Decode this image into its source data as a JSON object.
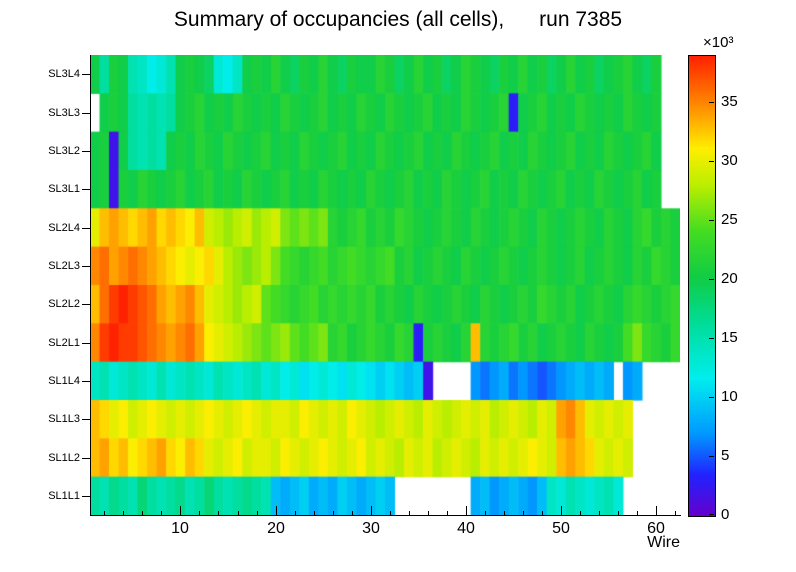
{
  "title": "Summary of occupancies (all cells),      run 7385",
  "axes": {
    "x_label": "Wire",
    "x_ticks": [
      10,
      20,
      30,
      40,
      50,
      60
    ],
    "y_labels": [
      "SL3L4",
      "SL3L3",
      "SL3L2",
      "SL3L1",
      "SL2L4",
      "SL2L3",
      "SL2L2",
      "SL2L1",
      "SL1L4",
      "SL1L3",
      "SL1L2",
      "SL1L1"
    ],
    "colorbar_ticks": [
      0,
      5,
      10,
      15,
      20,
      25,
      30,
      35
    ],
    "colorbar_exponent": "×10³"
  },
  "palette": [
    "#6600cc",
    "#2222ff",
    "#0099ff",
    "#00eeee",
    "#00dd99",
    "#11cc44",
    "#44dd22",
    "#bbee00",
    "#ffee00",
    "#ff9900",
    "#ff2200"
  ],
  "palette_stops": [
    0,
    0.09,
    0.18,
    0.3,
    0.42,
    0.52,
    0.62,
    0.72,
    0.8,
    0.88,
    1.0
  ],
  "chart_data": {
    "type": "heatmap",
    "title": "Summary of occupancies (all cells), run 7385",
    "xlabel": "Wire",
    "x_bins": 62,
    "x_range": [
      1,
      62
    ],
    "z_unit": "counts ×10³",
    "z_range": [
      0,
      39
    ],
    "legend_position": "colorbar-right",
    "grid": false,
    "note": "values in units of 10^3; null = empty (white) bin",
    "rows_top_to_bottom": [
      {
        "name": "SL3L4",
        "values": [
          20,
          16,
          21,
          20,
          15,
          14,
          12,
          13,
          15,
          20,
          21,
          20,
          19,
          13,
          12,
          14,
          20,
          21,
          20,
          22,
          20,
          19,
          21,
          20,
          22,
          20,
          19,
          21,
          20,
          20,
          22,
          21,
          19,
          20,
          22,
          20,
          21,
          19,
          20,
          22,
          21,
          20,
          19,
          21,
          20,
          22,
          20,
          21,
          19,
          20,
          22,
          20,
          21,
          19,
          20,
          21,
          22,
          20,
          19,
          21,
          null,
          null
        ]
      },
      {
        "name": "SL3L3",
        "values": [
          null,
          20,
          21,
          20,
          16,
          15,
          16,
          15,
          16,
          20,
          21,
          22,
          20,
          21,
          20,
          22,
          21,
          20,
          21,
          20,
          22,
          21,
          20,
          21,
          22,
          20,
          21,
          20,
          22,
          21,
          20,
          22,
          21,
          20,
          21,
          22,
          20,
          21,
          20,
          22,
          21,
          20,
          21,
          22,
          3,
          20,
          21,
          22,
          20,
          21,
          20,
          22,
          21,
          20,
          21,
          20,
          22,
          21,
          20,
          21,
          null,
          null
        ]
      },
      {
        "name": "SL3L2",
        "values": [
          20,
          21,
          2,
          20,
          16,
          15,
          16,
          15,
          20,
          21,
          20,
          22,
          21,
          20,
          22,
          21,
          20,
          21,
          22,
          20,
          21,
          20,
          22,
          21,
          20,
          21,
          22,
          20,
          21,
          20,
          22,
          21,
          20,
          21,
          22,
          20,
          21,
          20,
          22,
          21,
          20,
          21,
          22,
          20,
          21,
          20,
          22,
          21,
          20,
          21,
          22,
          20,
          21,
          20,
          22,
          21,
          20,
          21,
          22,
          20,
          null,
          null
        ]
      },
      {
        "name": "SL3L1",
        "values": [
          20,
          21,
          2,
          21,
          20,
          22,
          21,
          20,
          21,
          22,
          20,
          21,
          22,
          20,
          21,
          20,
          22,
          21,
          20,
          21,
          22,
          20,
          21,
          20,
          22,
          21,
          20,
          21,
          20,
          22,
          21,
          20,
          21,
          22,
          20,
          21,
          20,
          22,
          21,
          20,
          21,
          22,
          20,
          21,
          20,
          22,
          21,
          20,
          21,
          22,
          20,
          21,
          20,
          22,
          21,
          20,
          21,
          22,
          20,
          21,
          null,
          null
        ]
      },
      {
        "name": "SL2L4",
        "values": [
          30,
          33,
          34,
          33,
          32,
          33,
          34,
          32,
          33,
          32,
          31,
          33,
          29,
          28,
          27,
          28,
          29,
          27,
          28,
          29,
          26,
          25,
          26,
          25,
          26,
          22,
          21,
          22,
          23,
          21,
          22,
          21,
          23,
          22,
          21,
          20,
          21,
          22,
          21,
          20,
          22,
          21,
          20,
          21,
          22,
          21,
          20,
          22,
          21,
          20,
          21,
          22,
          21,
          20,
          22,
          21,
          20,
          22,
          23,
          21,
          22,
          21
        ]
      },
      {
        "name": "SL2L3",
        "values": [
          35,
          36,
          34,
          35,
          36,
          35,
          34,
          33,
          32,
          31,
          30,
          31,
          32,
          30,
          28,
          27,
          26,
          27,
          28,
          26,
          24,
          23,
          22,
          23,
          24,
          22,
          23,
          24,
          23,
          22,
          23,
          24,
          21,
          22,
          20,
          21,
          22,
          21,
          20,
          22,
          21,
          20,
          21,
          22,
          21,
          20,
          21,
          22,
          21,
          20,
          21,
          22,
          20,
          21,
          22,
          21,
          20,
          22,
          21,
          23,
          22,
          21
        ]
      },
      {
        "name": "SL2L2",
        "values": [
          33,
          36,
          38,
          39,
          38,
          37,
          36,
          34,
          33,
          34,
          35,
          33,
          30,
          29,
          28,
          27,
          28,
          29,
          25,
          24,
          23,
          22,
          23,
          24,
          22,
          23,
          22,
          23,
          22,
          23,
          21,
          22,
          21,
          20,
          22,
          21,
          20,
          21,
          22,
          21,
          20,
          22,
          21,
          20,
          21,
          22,
          21,
          23,
          22,
          21,
          22,
          20,
          21,
          22,
          21,
          20,
          22,
          23,
          22,
          21,
          22,
          23
        ]
      },
      {
        "name": "SL2L1",
        "values": [
          35,
          38,
          39,
          38,
          38,
          37,
          36,
          35,
          34,
          35,
          36,
          34,
          31,
          30,
          29,
          28,
          27,
          26,
          25,
          26,
          27,
          25,
          24,
          25,
          26,
          22,
          23,
          21,
          22,
          23,
          22,
          21,
          23,
          22,
          3,
          21,
          22,
          21,
          20,
          22,
          33,
          22,
          21,
          22,
          23,
          21,
          22,
          20,
          21,
          22,
          21,
          20,
          22,
          21,
          20,
          21,
          24,
          26,
          23,
          22,
          21,
          23
        ]
      },
      {
        "name": "SL1L4",
        "values": [
          14,
          15,
          13,
          14,
          15,
          14,
          13,
          15,
          13,
          14,
          15,
          14,
          13,
          15,
          14,
          13,
          14,
          15,
          13,
          14,
          12,
          13,
          11,
          12,
          13,
          12,
          11,
          13,
          12,
          11,
          10,
          11,
          10,
          9,
          10,
          2,
          null,
          null,
          null,
          null,
          7,
          6,
          7,
          8,
          6,
          7,
          6,
          5,
          6,
          7,
          8,
          9,
          8,
          9,
          8,
          null,
          7,
          8,
          null,
          null,
          null,
          null
        ]
      },
      {
        "name": "SL1L3",
        "values": [
          33,
          32,
          30,
          31,
          29,
          30,
          31,
          30,
          29,
          30,
          29,
          30,
          31,
          30,
          29,
          30,
          31,
          30,
          29,
          30,
          30,
          29,
          31,
          30,
          29,
          30,
          29,
          31,
          30,
          29,
          28,
          29,
          30,
          29,
          28,
          30,
          29,
          28,
          29,
          30,
          29,
          30,
          28,
          29,
          30,
          29,
          28,
          30,
          29,
          34,
          35,
          33,
          30,
          29,
          30,
          29,
          30,
          null,
          null,
          null,
          null,
          null
        ]
      },
      {
        "name": "SL1L2",
        "values": [
          33,
          34,
          32,
          33,
          31,
          32,
          33,
          34,
          32,
          31,
          33,
          32,
          30,
          29,
          30,
          31,
          29,
          30,
          30,
          29,
          31,
          30,
          29,
          30,
          31,
          30,
          29,
          30,
          31,
          29,
          30,
          29,
          28,
          30,
          29,
          30,
          28,
          29,
          30,
          29,
          28,
          30,
          29,
          30,
          29,
          30,
          31,
          30,
          29,
          33,
          34,
          33,
          32,
          30,
          29,
          30,
          29,
          null,
          null,
          null,
          null,
          null
        ]
      },
      {
        "name": "SL1L1",
        "values": [
          16,
          15,
          17,
          16,
          15,
          18,
          16,
          15,
          16,
          17,
          15,
          16,
          18,
          16,
          15,
          16,
          17,
          16,
          15,
          9,
          8,
          9,
          10,
          8,
          9,
          8,
          10,
          9,
          8,
          9,
          10,
          9,
          null,
          null,
          null,
          null,
          null,
          null,
          null,
          null,
          8,
          9,
          7,
          8,
          9,
          8,
          7,
          9,
          14,
          13,
          15,
          14,
          13,
          14,
          15,
          13,
          null,
          null,
          null,
          null,
          null,
          null
        ]
      }
    ]
  }
}
